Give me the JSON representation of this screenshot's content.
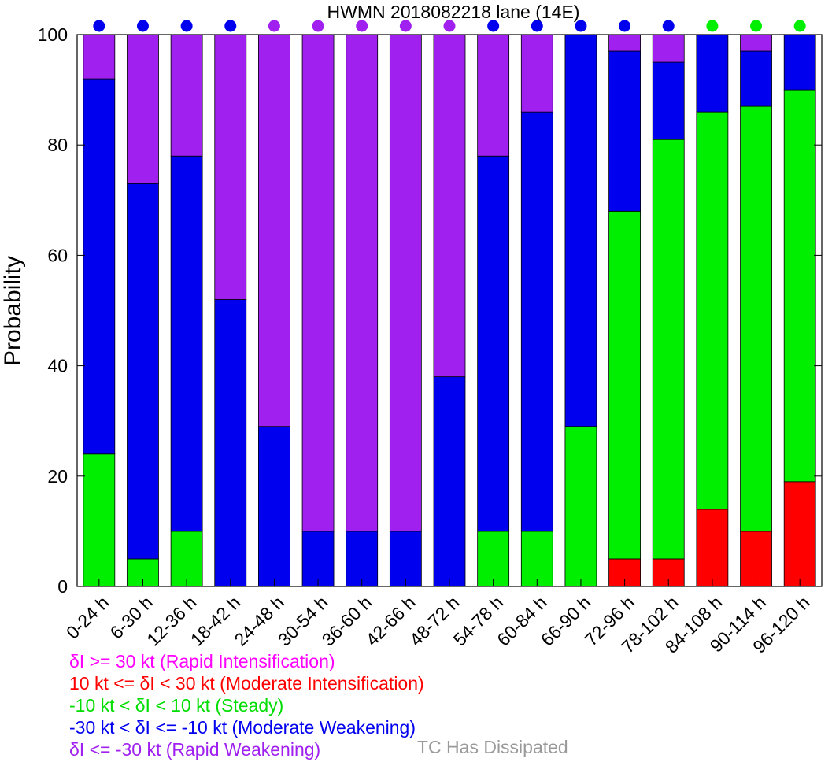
{
  "chart_data": {
    "type": "bar",
    "stacked": true,
    "title": "HWMN 2018082218 lane (14E)",
    "xlabel": "",
    "ylabel": "Probability",
    "ylim": [
      0,
      100
    ],
    "yticks": [
      "0",
      "20",
      "40",
      "60",
      "80",
      "100"
    ],
    "grid": false,
    "categories": [
      "0-24 h",
      "6-30 h",
      "12-36 h",
      "18-42 h",
      "24-48 h",
      "30-54 h",
      "36-60 h",
      "42-66 h",
      "48-72 h",
      "54-78 h",
      "60-84 h",
      "66-90 h",
      "72-96 h",
      "78-102 h",
      "84-108 h",
      "90-114 h",
      "96-120 h"
    ],
    "series": [
      {
        "key": "mi",
        "color": "#ff0000",
        "values": [
          0,
          0,
          0,
          0,
          0,
          0,
          0,
          0,
          0,
          0,
          0,
          0,
          5,
          5,
          14,
          10,
          19
        ]
      },
      {
        "key": "st",
        "color": "#00ee00",
        "values": [
          24,
          5,
          10,
          0,
          0,
          0,
          0,
          0,
          0,
          10,
          10,
          29,
          63,
          76,
          72,
          77,
          71
        ]
      },
      {
        "key": "mw",
        "color": "#0000ee",
        "values": [
          68,
          68,
          68,
          52,
          29,
          10,
          10,
          10,
          38,
          68,
          76,
          71,
          29,
          14,
          14,
          10,
          10
        ]
      },
      {
        "key": "rw",
        "color": "#a020f0",
        "values": [
          8,
          27,
          22,
          48,
          71,
          90,
          90,
          90,
          62,
          22,
          14,
          0,
          3,
          5,
          0,
          3,
          0
        ]
      },
      {
        "key": "ri",
        "color": "#ff00ff",
        "values": [
          0,
          0,
          0,
          0,
          0,
          0,
          0,
          0,
          0,
          0,
          0,
          0,
          0,
          0,
          0,
          0,
          0
        ]
      }
    ],
    "dot_colors": [
      "#0000ee",
      "#0000ee",
      "#0000ee",
      "#0000ee",
      "#a020f0",
      "#a020f0",
      "#a020f0",
      "#a020f0",
      "#a020f0",
      "#0000ee",
      "#0000ee",
      "#0000ee",
      "#0000ee",
      "#0000ee",
      "#00ee00",
      "#00ee00",
      "#00ee00"
    ]
  },
  "legend": {
    "ri": {
      "text": "δI >= 30 kt (Rapid Intensification)",
      "color": "#ff00ff"
    },
    "mi": {
      "text": "10 kt <= δI < 30 kt (Moderate Intensification)",
      "color": "#ff0000"
    },
    "st": {
      "text": "-10 kt < δI < 10 kt (Steady)",
      "color": "#00dd00"
    },
    "mw": {
      "text": "-30 kt < δI <= -10 kt (Moderate Weakening)",
      "color": "#0000ee"
    },
    "rw": {
      "text": "δI <= -30 kt (Rapid Weakening)",
      "color": "#a020f0"
    },
    "dissipated": {
      "text": "TC Has Dissipated",
      "color": "#999999"
    }
  }
}
